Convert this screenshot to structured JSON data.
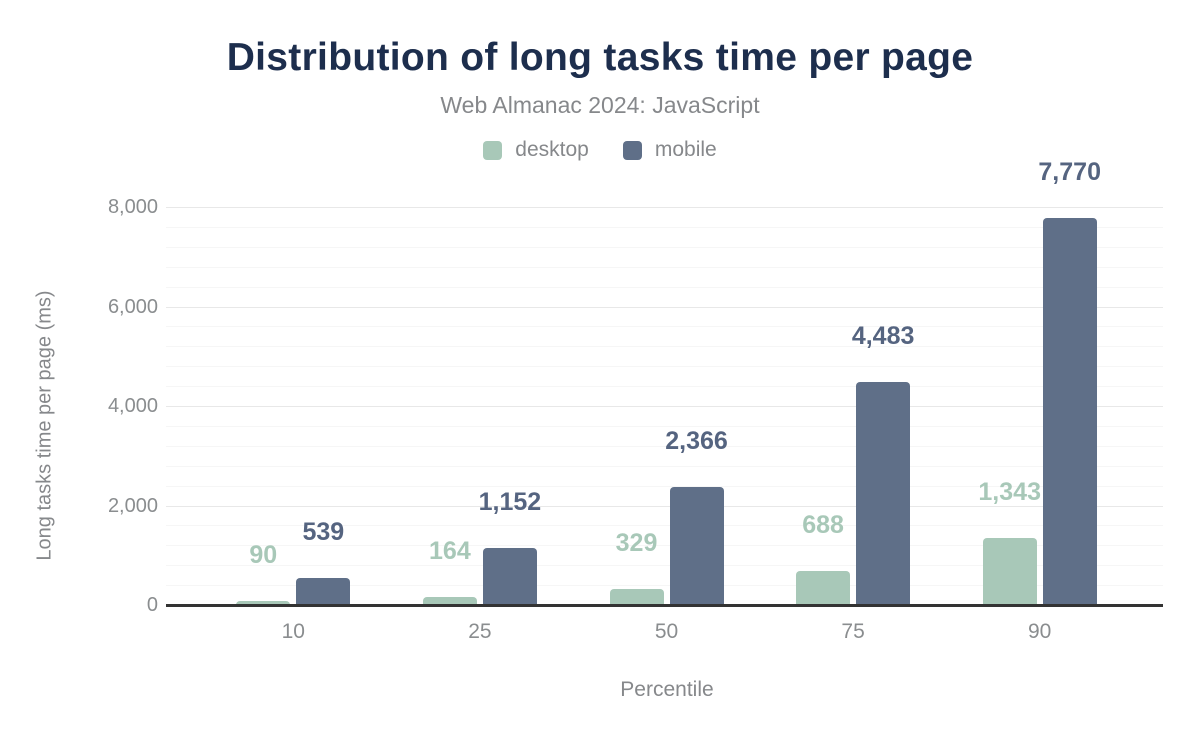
{
  "title": "Distribution of long tasks time per page",
  "subtitle": "Web Almanac 2024: JavaScript",
  "colors": {
    "title_text": "#1d2e4d",
    "muted_text": "#86888b",
    "tick_text": "#8a8d8f",
    "axis_line": "#333333",
    "grid_major": "#e8e8e8",
    "grid_minor": "#f6f6f6",
    "desktop": "#a8c8b8",
    "mobile": "#5f6f88",
    "desktop_value_label": "#a8c8b8",
    "mobile_value_label": "#556480"
  },
  "chart_data": {
    "type": "bar",
    "title": "Distribution of long tasks time per page",
    "subtitle": "Web Almanac 2024: JavaScript",
    "categories": [
      "10",
      "25",
      "50",
      "75",
      "90"
    ],
    "series": [
      {
        "name": "desktop",
        "color": "#a8c8b8",
        "label_color": "#a8c8b8",
        "values": [
          90,
          164,
          329,
          688,
          1343
        ],
        "value_labels": [
          "90",
          "164",
          "329",
          "688",
          "1,343"
        ]
      },
      {
        "name": "mobile",
        "color": "#5f6f88",
        "label_color": "#556480",
        "values": [
          539,
          1152,
          2366,
          4483,
          7770
        ],
        "value_labels": [
          "539",
          "1,152",
          "2,366",
          "4,483",
          "7,770"
        ]
      }
    ],
    "xlabel": "Percentile",
    "ylabel": "Long tasks time per page (ms)",
    "ylim": [
      0,
      8000
    ],
    "yticks": [
      0,
      2000,
      4000,
      6000,
      8000
    ],
    "ytick_labels": [
      "0",
      "2,000",
      "4,000",
      "6,000",
      "8,000"
    ],
    "minor_tick_interval": 400,
    "grid": true,
    "legend_position": "top-center",
    "bar_value_labels": true
  }
}
